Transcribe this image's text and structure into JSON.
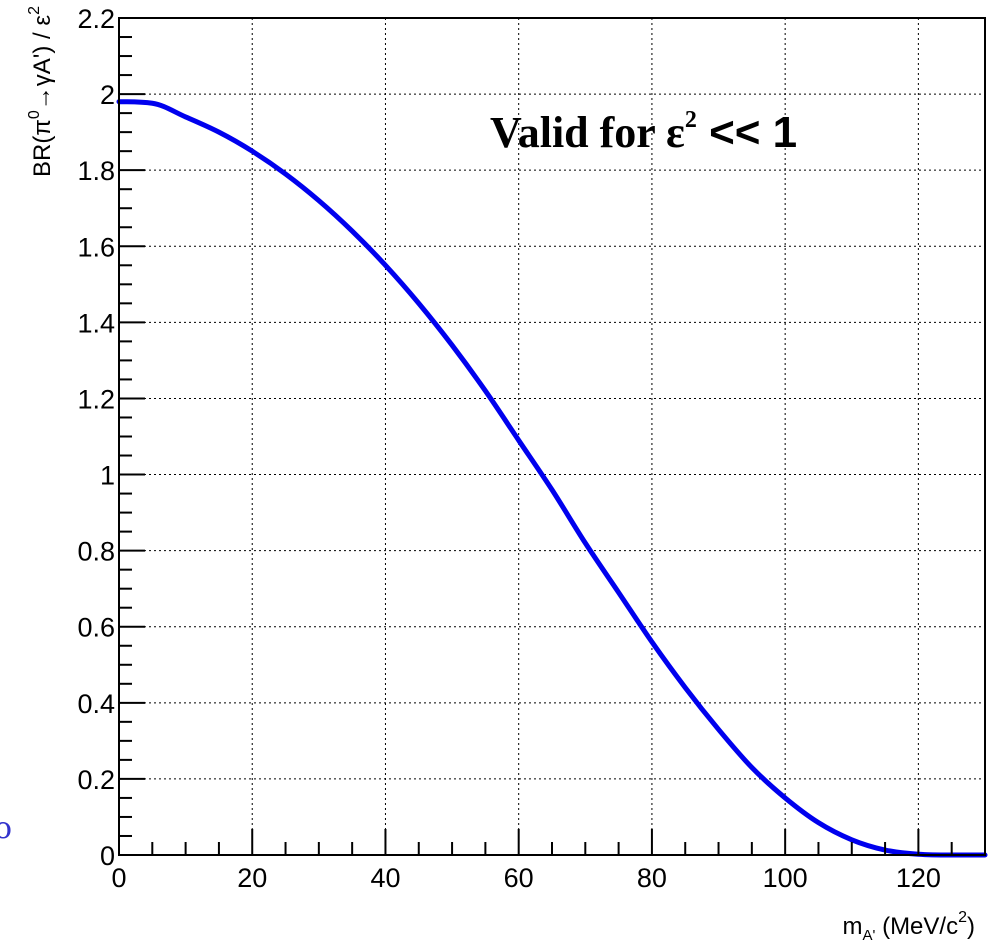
{
  "chart_data": {
    "type": "line",
    "xlabel": {
      "main": "m",
      "sub": "A'",
      "rest": " (MeV/c",
      "sup": "2",
      "close": ")"
    },
    "ylabel": {
      "prefix": "BR(π",
      "sup0": "0",
      "middle": "→γA') / ε",
      "sup2": "2"
    },
    "xlim": [
      0,
      130
    ],
    "ylim": [
      0,
      2.2
    ],
    "x_ticks": [
      0,
      20,
      40,
      60,
      80,
      100,
      120
    ],
    "x_tick_labels": [
      "0",
      "20",
      "40",
      "60",
      "80",
      "100",
      "120"
    ],
    "y_ticks": [
      0,
      0.2,
      0.4,
      0.6,
      0.8,
      1,
      1.2,
      1.4,
      1.6,
      1.8,
      2,
      2.2
    ],
    "y_tick_labels": [
      "0",
      "0.2",
      "0.4",
      "0.6",
      "0.8",
      "1",
      "1.2",
      "1.4",
      "1.6",
      "1.8",
      "2",
      "2.2"
    ],
    "grid": true,
    "annotation": {
      "text": "Valid for ε",
      "sup": "2",
      "rest": " << 1"
    },
    "edge_glyph": "o",
    "series": [
      {
        "color": "#0000ee",
        "x": [
          0,
          5,
          10,
          15,
          20,
          25,
          30,
          35,
          40,
          45,
          50,
          55,
          60,
          65,
          70,
          75,
          80,
          85,
          90,
          95,
          100,
          105,
          110,
          115,
          120,
          125,
          130
        ],
        "y": [
          1.98,
          1.976,
          1.94,
          1.9,
          1.85,
          1.79,
          1.72,
          1.64,
          1.55,
          1.45,
          1.34,
          1.22,
          1.09,
          0.96,
          0.82,
          0.69,
          0.56,
          0.44,
          0.33,
          0.23,
          0.15,
          0.085,
          0.04,
          0.013,
          0.002,
          0.0,
          0.0
        ]
      }
    ]
  }
}
